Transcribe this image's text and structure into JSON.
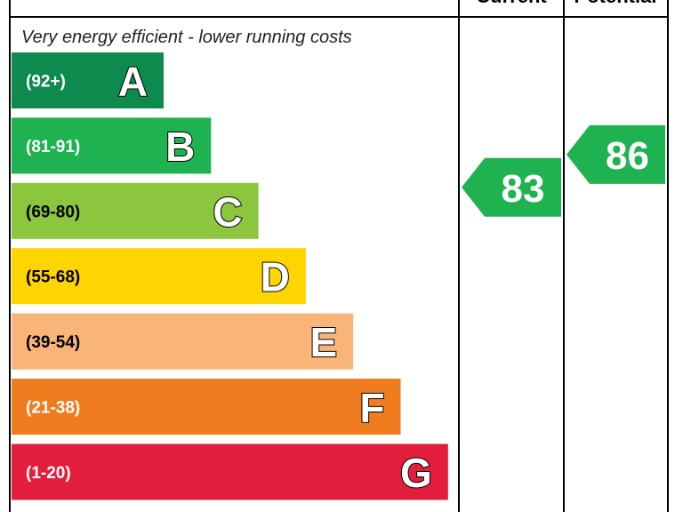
{
  "chart_data": {
    "type": "bar",
    "title": "",
    "caption_top": "Very energy efficient - lower running costs",
    "columns": [
      "Current",
      "Potential"
    ],
    "scale_max": 100,
    "bands": [
      {
        "letter": "A",
        "range": "(92+)",
        "min": 92,
        "max": 100,
        "color": "#0e8a4f"
      },
      {
        "letter": "B",
        "range": "(81-91)",
        "min": 81,
        "max": 91,
        "color": "#1fb250"
      },
      {
        "letter": "C",
        "range": "(69-80)",
        "min": 69,
        "max": 80,
        "color": "#8cc63f"
      },
      {
        "letter": "D",
        "range": "(55-68)",
        "min": 55,
        "max": 68,
        "color": "#ffd500"
      },
      {
        "letter": "E",
        "range": "(39-54)",
        "min": 39,
        "max": 54,
        "color": "#f9b577"
      },
      {
        "letter": "F",
        "range": "(21-38)",
        "min": 21,
        "max": 38,
        "color": "#ef7d20"
      },
      {
        "letter": "G",
        "range": "(1-20)",
        "min": 1,
        "max": 20,
        "color": "#e31d3c"
      }
    ],
    "ratings": [
      {
        "column": "Current",
        "value": 83,
        "band": "B",
        "color": "#1fb250"
      },
      {
        "column": "Potential",
        "value": 86,
        "band": "B",
        "color": "#1fb250"
      }
    ]
  }
}
